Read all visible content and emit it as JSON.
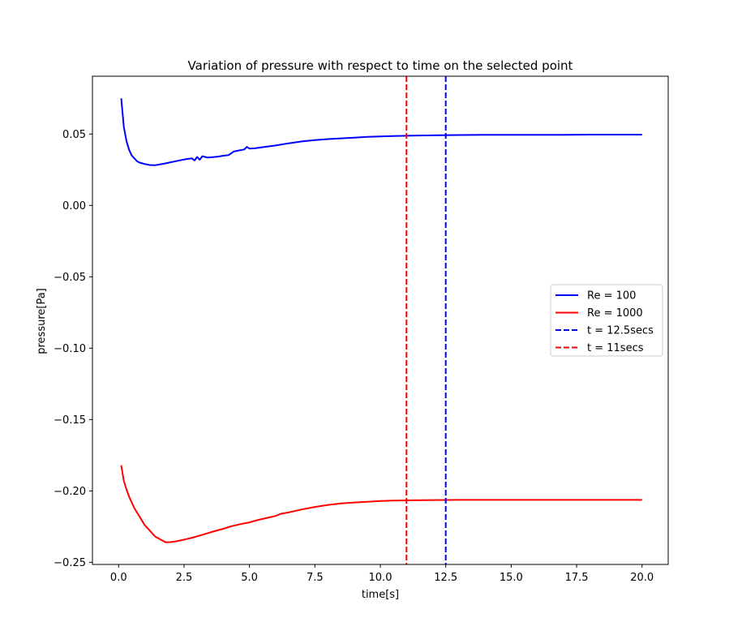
{
  "chart_data": {
    "type": "line",
    "title": "Variation of pressure with respect to time on the selected point",
    "xlabel": "time[s]",
    "ylabel": "pressure[Pa]",
    "xlim": [
      -1.0,
      21.0
    ],
    "ylim": [
      -0.2515,
      0.0905
    ],
    "xticks": [
      0.0,
      2.5,
      5.0,
      7.5,
      10.0,
      12.5,
      15.0,
      17.5,
      20.0
    ],
    "xtick_labels": [
      "0.0",
      "2.5",
      "5.0",
      "7.5",
      "10.0",
      "12.5",
      "15.0",
      "17.5",
      "20.0"
    ],
    "yticks": [
      0.05,
      0.0,
      -0.05,
      -0.1,
      -0.15,
      -0.2,
      -0.25
    ],
    "ytick_labels": [
      "0.05",
      "0.00",
      "−0.05",
      "−0.10",
      "−0.15",
      "−0.20",
      "−0.25"
    ],
    "grid": false,
    "legend_position": "center-right",
    "series": [
      {
        "name": "Re = 100",
        "color": "#0000ff",
        "style": "solid",
        "x": [
          0.1,
          0.2,
          0.3,
          0.4,
          0.5,
          0.6,
          0.7,
          0.8,
          0.9,
          1.0,
          1.2,
          1.4,
          1.6,
          1.8,
          2.0,
          2.2,
          2.4,
          2.6,
          2.8,
          2.9,
          3.0,
          3.1,
          3.2,
          3.4,
          3.6,
          3.8,
          4.0,
          4.2,
          4.4,
          4.6,
          4.8,
          4.9,
          5.0,
          5.2,
          5.5,
          6.0,
          6.5,
          7.0,
          7.5,
          8.0,
          8.5,
          9.0,
          9.5,
          10.0,
          10.5,
          11.0,
          12.0,
          13.0,
          14.0,
          15.0,
          16.0,
          17.0,
          18.0,
          19.0,
          20.0
        ],
        "values": [
          0.075,
          0.055,
          0.045,
          0.039,
          0.035,
          0.033,
          0.031,
          0.03,
          0.0295,
          0.029,
          0.0283,
          0.0282,
          0.0288,
          0.0295,
          0.0303,
          0.031,
          0.0318,
          0.0325,
          0.033,
          0.0315,
          0.034,
          0.032,
          0.0345,
          0.0335,
          0.0338,
          0.0342,
          0.0348,
          0.0352,
          0.0378,
          0.0385,
          0.0392,
          0.041,
          0.0398,
          0.04,
          0.0408,
          0.042,
          0.0435,
          0.0448,
          0.0458,
          0.0465,
          0.047,
          0.0475,
          0.048,
          0.0483,
          0.0486,
          0.0488,
          0.0491,
          0.0493,
          0.0494,
          0.0495,
          0.0495,
          0.0495,
          0.0496,
          0.0496,
          0.0496
        ]
      },
      {
        "name": "Re = 1000",
        "color": "#ff0000",
        "style": "solid",
        "x": [
          0.1,
          0.2,
          0.3,
          0.4,
          0.5,
          0.6,
          0.7,
          0.8,
          0.9,
          1.0,
          1.1,
          1.2,
          1.3,
          1.4,
          1.5,
          1.6,
          1.7,
          1.8,
          2.0,
          2.2,
          2.4,
          2.6,
          2.8,
          3.0,
          3.3,
          3.6,
          4.0,
          4.3,
          4.6,
          5.0,
          5.3,
          5.6,
          6.0,
          6.2,
          6.5,
          7.0,
          7.5,
          8.0,
          8.5,
          9.0,
          9.5,
          10.0,
          10.5,
          11.0,
          12.0,
          13.0,
          14.0,
          15.0,
          16.0,
          17.0,
          18.0,
          19.0,
          20.0
        ],
        "values": [
          -0.182,
          -0.193,
          -0.199,
          -0.204,
          -0.208,
          -0.212,
          -0.215,
          -0.218,
          -0.221,
          -0.224,
          -0.226,
          -0.228,
          -0.23,
          -0.232,
          -0.233,
          -0.234,
          -0.235,
          -0.236,
          -0.2358,
          -0.2353,
          -0.2345,
          -0.2337,
          -0.2328,
          -0.2318,
          -0.2302,
          -0.2285,
          -0.2265,
          -0.2248,
          -0.2235,
          -0.222,
          -0.2205,
          -0.2192,
          -0.2175,
          -0.216,
          -0.215,
          -0.213,
          -0.2112,
          -0.2098,
          -0.2088,
          -0.2081,
          -0.2076,
          -0.2071,
          -0.2068,
          -0.2066,
          -0.2064,
          -0.2063,
          -0.2063,
          -0.2063,
          -0.2063,
          -0.2063,
          -0.2063,
          -0.2063,
          -0.2063
        ]
      }
    ],
    "vlines": [
      {
        "name": "t = 12.5secs",
        "x": 12.5,
        "color": "#0000ff",
        "style": "dashed"
      },
      {
        "name": "t = 11secs",
        "x": 11.0,
        "color": "#ff0000",
        "style": "dashed"
      }
    ]
  }
}
